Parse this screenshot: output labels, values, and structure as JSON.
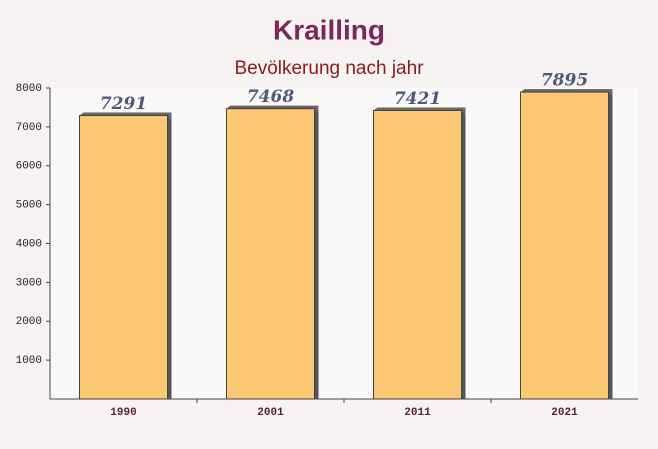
{
  "chart_data": {
    "type": "bar",
    "title": "Krailling",
    "subtitle": "Bevölkerung nach jahr",
    "categories": [
      "1990",
      "2001",
      "2011",
      "2021"
    ],
    "values": [
      7291,
      7468,
      7421,
      7895
    ],
    "color": "#fdc264",
    "ylim": [
      0,
      8000
    ],
    "yticks": [
      1000,
      2000,
      3000,
      4000,
      5000,
      6000,
      7000,
      8000
    ],
    "grid": false
  }
}
